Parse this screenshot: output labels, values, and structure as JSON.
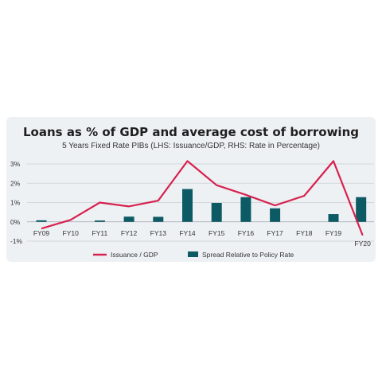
{
  "chart_data": {
    "type": "bar+line",
    "title": "Loans as % of GDP and average cost of borrowing",
    "subtitle": "5 Years Fixed Rate PIBs (LHS: Issuance/GDP, RHS: Rate in Percentage)",
    "categories": [
      "FY09",
      "FY10",
      "FY11",
      "FY12",
      "FY13",
      "FY14",
      "FY15",
      "FY16",
      "FY17",
      "FY18",
      "FY19",
      "FY20"
    ],
    "y_ticks": [
      "3%",
      "2%",
      "1%",
      "0%",
      "-1%"
    ],
    "ylim": [
      -1,
      3
    ],
    "grid": true,
    "legend_position": "bottom",
    "series": [
      {
        "name": "Issuance / GDP",
        "kind": "line",
        "color": "#d6224f",
        "values": [
          -0.35,
          0.1,
          1.0,
          0.8,
          1.1,
          3.15,
          1.9,
          1.4,
          0.85,
          1.35,
          3.15,
          -0.7
        ]
      },
      {
        "name": "Spread Relative to Policy Rate",
        "kind": "bar",
        "color": "#0c5a63",
        "values": [
          0.08,
          0,
          0.07,
          0.27,
          0.26,
          1.7,
          0.98,
          1.28,
          0.7,
          0,
          0.4,
          1.28
        ]
      }
    ]
  }
}
